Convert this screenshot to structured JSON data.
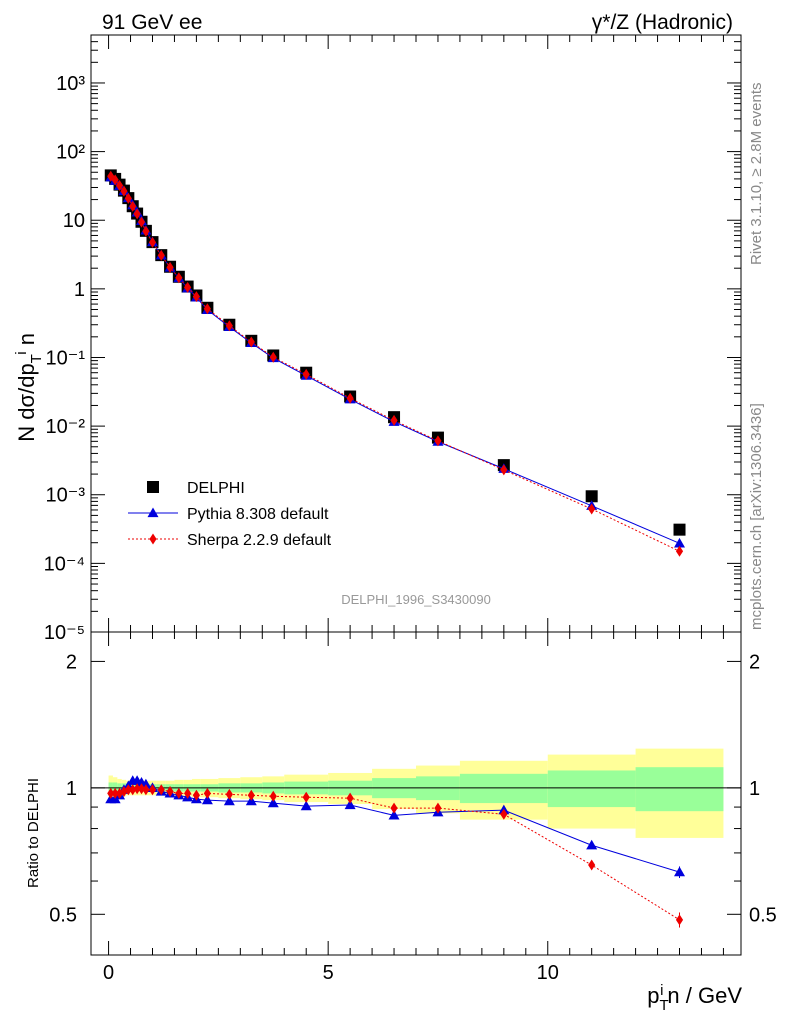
{
  "header": {
    "left": "91 GeV ee",
    "right": "γ*/Z (Hadronic)"
  },
  "side_labels": {
    "rivet": "Rivet 3.1.10, ≥ 2.8M events",
    "mcplots": "mcplots.cern.ch [arXiv:1306.3436]"
  },
  "analysis_tag": "DELPHI_1996_S3430090",
  "chart_data": [
    {
      "type": "scatter",
      "panel": "main",
      "ylabel": "N dσ/dp_T^i n",
      "xlim": [
        -0.4,
        14.4
      ],
      "ylim": [
        1e-05,
        5000
      ],
      "log_y": true,
      "y_ticks": [
        {
          "value": 1e-05,
          "label": "10⁻⁵"
        },
        {
          "value": 0.0001,
          "label": "10⁻⁴"
        },
        {
          "value": 0.001,
          "label": "10⁻³"
        },
        {
          "value": 0.01,
          "label": "10⁻²"
        },
        {
          "value": 0.1,
          "label": "10⁻¹"
        },
        {
          "value": 1,
          "label": "1"
        },
        {
          "value": 10,
          "label": "10"
        },
        {
          "value": 100,
          "label": "10²"
        },
        {
          "value": 1000,
          "label": "10³"
        }
      ],
      "legend_position": "bottom-left",
      "x": [
        0.05,
        0.15,
        0.25,
        0.35,
        0.45,
        0.55,
        0.65,
        0.75,
        0.85,
        1.0,
        1.2,
        1.4,
        1.6,
        1.8,
        2.0,
        2.25,
        2.75,
        3.25,
        3.75,
        4.5,
        5.5,
        6.5,
        7.5,
        9.0,
        11.0,
        13.0
      ],
      "series": [
        {
          "name": "DELPHI",
          "style": "data",
          "values": [
            45,
            40,
            33,
            27,
            21,
            16,
            12.5,
            9.5,
            7.0,
            4.8,
            3.1,
            2.1,
            1.5,
            1.08,
            0.8,
            0.53,
            0.3,
            0.175,
            0.107,
            0.06,
            0.027,
            0.0135,
            0.0068,
            0.0027,
            0.00095,
            0.00031
          ]
        },
        {
          "name": "Pythia 8.308 default",
          "style": "pythia",
          "values": [
            42.3,
            37.6,
            31.7,
            26.7,
            21.1,
            16.6,
            13.0,
            9.8,
            7.1,
            4.82,
            3.09,
            2.05,
            1.44,
            1.02,
            0.75,
            0.495,
            0.279,
            0.163,
            0.0982,
            0.0544,
            0.0246,
            0.0116,
            0.00594,
            0.00239,
            0.00069,
            0.000196
          ]
        },
        {
          "name": "Sherpa 2.2.9 default",
          "style": "sherpa",
          "values": [
            43.7,
            38.8,
            32.0,
            26.5,
            20.8,
            15.9,
            12.4,
            9.4,
            6.9,
            4.75,
            3.07,
            2.06,
            1.45,
            1.05,
            0.77,
            0.513,
            0.29,
            0.168,
            0.101,
            0.0568,
            0.0255,
            0.0121,
            0.0061,
            0.0023,
            0.00062,
            0.00015
          ]
        }
      ]
    },
    {
      "type": "line",
      "panel": "ratio",
      "xlabel": "p_T^i n / GeV",
      "ylabel": "Ratio to DELPHI",
      "xlim": [
        -0.4,
        14.4
      ],
      "ylim": [
        0.4,
        2.35
      ],
      "log_y": true,
      "x_ticks": [
        0,
        5,
        10
      ],
      "y_ticks": [
        0.5,
        1,
        2
      ],
      "bins": [
        [
          0,
          0.1
        ],
        [
          0.1,
          0.2
        ],
        [
          0.2,
          0.3
        ],
        [
          0.3,
          0.4
        ],
        [
          0.4,
          0.5
        ],
        [
          0.5,
          0.6
        ],
        [
          0.6,
          0.7
        ],
        [
          0.7,
          0.8
        ],
        [
          0.8,
          0.9
        ],
        [
          0.9,
          1.1
        ],
        [
          1.1,
          1.3
        ],
        [
          1.3,
          1.5
        ],
        [
          1.5,
          1.7
        ],
        [
          1.7,
          1.9
        ],
        [
          1.9,
          2.1
        ],
        [
          2.1,
          2.5
        ],
        [
          2.5,
          3.0
        ],
        [
          3.0,
          3.5
        ],
        [
          3.5,
          4.0
        ],
        [
          4.0,
          5.0
        ],
        [
          5.0,
          6.0
        ],
        [
          6.0,
          7.0
        ],
        [
          7.0,
          8.0
        ],
        [
          8.0,
          10.0
        ],
        [
          10.0,
          12.0
        ],
        [
          12.0,
          14.0
        ]
      ],
      "band_green": [
        0.03,
        0.03,
        0.025,
        0.025,
        0.02,
        0.02,
        0.02,
        0.02,
        0.02,
        0.02,
        0.02,
        0.02,
        0.02,
        0.02,
        0.02,
        0.02,
        0.025,
        0.025,
        0.03,
        0.035,
        0.04,
        0.055,
        0.065,
        0.08,
        0.1,
        0.12
      ],
      "band_yellow": [
        0.07,
        0.06,
        0.05,
        0.045,
        0.04,
        0.04,
        0.04,
        0.04,
        0.04,
        0.04,
        0.04,
        0.04,
        0.045,
        0.045,
        0.05,
        0.05,
        0.055,
        0.06,
        0.065,
        0.075,
        0.085,
        0.11,
        0.13,
        0.16,
        0.2,
        0.24
      ],
      "x": [
        0.05,
        0.15,
        0.25,
        0.35,
        0.45,
        0.55,
        0.65,
        0.75,
        0.85,
        1.0,
        1.2,
        1.4,
        1.6,
        1.8,
        2.0,
        2.25,
        2.75,
        3.25,
        3.75,
        4.5,
        5.5,
        6.5,
        7.5,
        9.0,
        11.0,
        13.0
      ],
      "series": [
        {
          "name": "Pythia 8.308 default",
          "style": "pythia",
          "values": [
            0.94,
            0.94,
            0.96,
            0.99,
            1.01,
            1.04,
            1.04,
            1.03,
            1.02,
            1.0,
            0.98,
            0.97,
            0.96,
            0.95,
            0.94,
            0.935,
            0.93,
            0.93,
            0.92,
            0.905,
            0.91,
            0.86,
            0.875,
            0.885,
            0.73,
            0.63
          ],
          "errors": [
            0,
            0,
            0,
            0,
            0,
            0,
            0,
            0,
            0,
            0,
            0,
            0,
            0,
            0,
            0,
            0,
            0,
            0,
            0,
            0,
            0,
            0,
            0,
            0,
            0.01,
            0.02
          ]
        },
        {
          "name": "Sherpa 2.2.9 default",
          "style": "sherpa",
          "values": [
            0.97,
            0.97,
            0.97,
            0.98,
            0.99,
            0.99,
            0.995,
            0.995,
            0.99,
            0.99,
            0.99,
            0.98,
            0.97,
            0.97,
            0.96,
            0.97,
            0.965,
            0.96,
            0.955,
            0.95,
            0.945,
            0.895,
            0.895,
            0.865,
            0.655,
            0.485
          ],
          "errors": [
            0,
            0,
            0,
            0,
            0,
            0,
            0,
            0,
            0,
            0,
            0,
            0,
            0,
            0,
            0,
            0,
            0,
            0,
            0,
            0,
            0,
            0,
            0,
            0,
            0.01,
            0.02
          ]
        }
      ]
    }
  ]
}
